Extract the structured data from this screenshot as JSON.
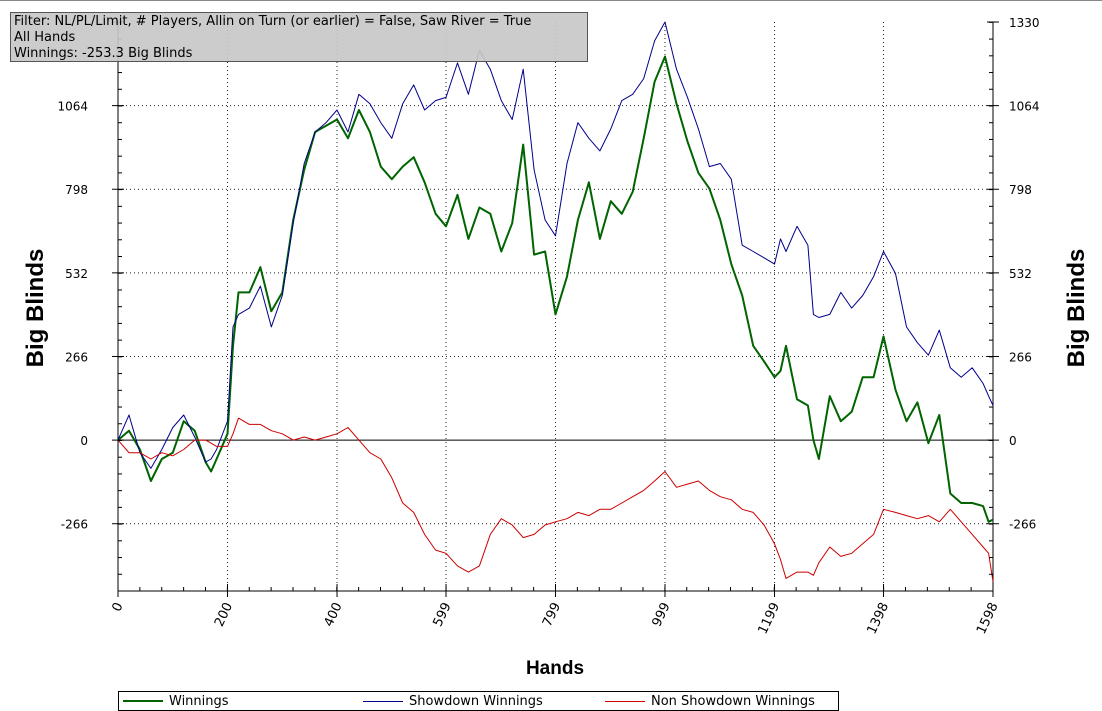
{
  "filter": {
    "line1": "Filter: NL/PL/Limit, # Players, Allin on Turn (or earlier) = False, Saw River = True",
    "line2": "All Hands",
    "line3": "Winnings: -253.3 Big Blinds"
  },
  "chart_data": {
    "type": "line",
    "xlabel": "Hands",
    "ylabel": "Big Blinds",
    "ylabel_right": "Big Blinds",
    "xlim": [
      0,
      1598
    ],
    "ylim": [
      -480,
      1330
    ],
    "x_ticks": [
      "0",
      "200",
      "400",
      "599",
      "799",
      "999",
      "1199",
      "1398",
      "1598"
    ],
    "x_tick_values": [
      0,
      200,
      400,
      599,
      799,
      999,
      1199,
      1398,
      1598
    ],
    "y_ticks": [
      "1330",
      "1064",
      "798",
      "532",
      "266",
      "0",
      "-266"
    ],
    "y_tick_values": [
      1330,
      1064,
      798,
      532,
      266,
      0,
      -266
    ],
    "y_ticks_left": [
      "1064",
      "798",
      "532",
      "266",
      "0",
      "-266"
    ],
    "y_tick_values_left": [
      1064,
      798,
      532,
      266,
      0,
      -266
    ],
    "grid": true,
    "legend": "bottom",
    "series": [
      {
        "name": "Winnings",
        "color": "#006400",
        "x": [
          0,
          20,
          40,
          60,
          80,
          100,
          120,
          140,
          160,
          170,
          180,
          200,
          210,
          220,
          240,
          260,
          280,
          300,
          320,
          340,
          360,
          380,
          400,
          420,
          440,
          460,
          480,
          500,
          520,
          540,
          560,
          580,
          599,
          620,
          640,
          660,
          680,
          700,
          720,
          740,
          760,
          780,
          799,
          820,
          840,
          860,
          880,
          900,
          920,
          940,
          960,
          980,
          999,
          1020,
          1040,
          1060,
          1080,
          1100,
          1120,
          1140,
          1160,
          1180,
          1199,
          1210,
          1220,
          1240,
          1260,
          1270,
          1280,
          1300,
          1320,
          1340,
          1360,
          1380,
          1398,
          1420,
          1440,
          1460,
          1480,
          1500,
          1520,
          1540,
          1560,
          1580,
          1590,
          1598
        ],
        "y": [
          0,
          30,
          -30,
          -130,
          -60,
          -40,
          60,
          30,
          -70,
          -100,
          -60,
          20,
          300,
          470,
          470,
          550,
          410,
          470,
          700,
          860,
          980,
          1000,
          1020,
          960,
          1050,
          980,
          870,
          830,
          870,
          900,
          820,
          720,
          680,
          780,
          640,
          740,
          720,
          600,
          690,
          940,
          590,
          600,
          400,
          520,
          700,
          820,
          640,
          760,
          720,
          790,
          960,
          1140,
          1220,
          1070,
          950,
          850,
          800,
          700,
          560,
          460,
          300,
          250,
          200,
          220,
          300,
          130,
          110,
          0,
          -60,
          140,
          60,
          90,
          200,
          200,
          330,
          160,
          60,
          120,
          -10,
          80,
          -170,
          -200,
          -200,
          -210,
          -260,
          -253
        ]
      },
      {
        "name": "Showdown Winnings",
        "color": "#00008b",
        "x": [
          0,
          20,
          40,
          60,
          80,
          100,
          120,
          140,
          160,
          170,
          180,
          200,
          210,
          220,
          240,
          260,
          280,
          300,
          320,
          340,
          360,
          380,
          400,
          420,
          440,
          460,
          480,
          500,
          520,
          540,
          560,
          580,
          599,
          620,
          640,
          660,
          680,
          700,
          720,
          740,
          760,
          780,
          799,
          820,
          840,
          860,
          880,
          900,
          920,
          940,
          960,
          980,
          999,
          1020,
          1040,
          1060,
          1080,
          1100,
          1120,
          1140,
          1160,
          1180,
          1199,
          1210,
          1220,
          1240,
          1260,
          1270,
          1280,
          1300,
          1320,
          1340,
          1360,
          1380,
          1398,
          1420,
          1440,
          1460,
          1480,
          1500,
          1520,
          1540,
          1560,
          1580,
          1590,
          1598
        ],
        "y": [
          0,
          80,
          -40,
          -90,
          -30,
          40,
          80,
          10,
          -70,
          -60,
          -30,
          60,
          360,
          400,
          420,
          490,
          360,
          460,
          690,
          880,
          980,
          1010,
          1050,
          980,
          1100,
          1070,
          1010,
          960,
          1070,
          1130,
          1050,
          1080,
          1090,
          1200,
          1100,
          1240,
          1180,
          1080,
          1020,
          1180,
          860,
          700,
          650,
          880,
          1010,
          960,
          920,
          990,
          1080,
          1100,
          1150,
          1270,
          1330,
          1180,
          1090,
          990,
          870,
          880,
          830,
          620,
          600,
          580,
          560,
          640,
          600,
          680,
          620,
          400,
          390,
          400,
          470,
          420,
          460,
          520,
          600,
          530,
          360,
          310,
          270,
          350,
          230,
          200,
          230,
          180,
          140,
          110
        ]
      },
      {
        "name": "Non Showdown Winnings",
        "color": "#cc0000",
        "x": [
          0,
          20,
          40,
          60,
          80,
          100,
          120,
          140,
          160,
          170,
          180,
          200,
          210,
          220,
          240,
          260,
          280,
          300,
          320,
          340,
          360,
          380,
          400,
          420,
          440,
          460,
          480,
          500,
          520,
          540,
          560,
          580,
          599,
          620,
          640,
          660,
          680,
          700,
          720,
          740,
          760,
          780,
          799,
          820,
          840,
          860,
          880,
          900,
          920,
          940,
          960,
          980,
          999,
          1020,
          1040,
          1060,
          1080,
          1100,
          1120,
          1140,
          1160,
          1180,
          1199,
          1210,
          1220,
          1240,
          1260,
          1270,
          1280,
          1300,
          1320,
          1340,
          1360,
          1380,
          1398,
          1420,
          1440,
          1460,
          1480,
          1500,
          1520,
          1540,
          1560,
          1580,
          1590,
          1598
        ],
        "y": [
          0,
          -40,
          -40,
          -60,
          -40,
          -50,
          -30,
          0,
          0,
          -10,
          -20,
          -20,
          20,
          70,
          50,
          50,
          30,
          20,
          0,
          10,
          0,
          10,
          20,
          40,
          0,
          -40,
          -60,
          -120,
          -200,
          -230,
          -300,
          -350,
          -360,
          -400,
          -420,
          -400,
          -300,
          -250,
          -270,
          -310,
          -300,
          -270,
          -260,
          -250,
          -230,
          -240,
          -220,
          -220,
          -200,
          -180,
          -160,
          -130,
          -100,
          -150,
          -140,
          -130,
          -160,
          -180,
          -190,
          -220,
          -230,
          -270,
          -330,
          -380,
          -440,
          -420,
          -420,
          -430,
          -390,
          -340,
          -370,
          -360,
          -330,
          -300,
          -220,
          -230,
          -240,
          -250,
          -240,
          -260,
          -220,
          -260,
          -300,
          -340,
          -360,
          -450
        ]
      }
    ]
  }
}
